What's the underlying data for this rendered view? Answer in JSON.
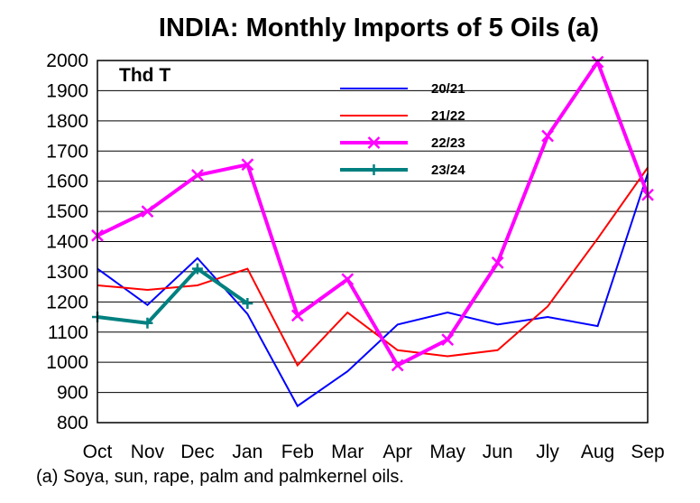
{
  "chart_data": {
    "type": "line",
    "title": "INDIA:  Monthly Imports of 5 Oils (a)",
    "unit_label": "Thd T",
    "footnote": "(a) Soya, sun, rape, palm and palmkernel oils.",
    "xlabel": "",
    "ylabel": "",
    "categories": [
      "Oct",
      "Nov",
      "Dec",
      "Jan",
      "Feb",
      "Mar",
      "Apr",
      "May",
      "Jun",
      "Jly",
      "Aug",
      "Sep"
    ],
    "ylim": [
      800,
      2000
    ],
    "yticks": [
      800,
      900,
      1000,
      1100,
      1200,
      1300,
      1400,
      1500,
      1600,
      1700,
      1800,
      1900,
      2000
    ],
    "grid": true,
    "legend_position": "top-center",
    "series": [
      {
        "name": "20/21",
        "color": "#0000ff",
        "marker": "none",
        "width": 2,
        "values": [
          1310,
          1190,
          1345,
          1160,
          855,
          970,
          1125,
          1165,
          1125,
          1150,
          1120,
          1625
        ]
      },
      {
        "name": "21/22",
        "color": "#ff0000",
        "marker": "none",
        "width": 2,
        "values": [
          1255,
          1240,
          1255,
          1310,
          990,
          1165,
          1040,
          1020,
          1040,
          1185,
          1410,
          1645
        ]
      },
      {
        "name": "22/23",
        "color": "#ff00ff",
        "marker": "x",
        "width": 4,
        "values": [
          1420,
          1500,
          1620,
          1655,
          1155,
          1275,
          990,
          1075,
          1330,
          1750,
          1995,
          1555
        ]
      },
      {
        "name": "23/24",
        "color": "#008080",
        "marker": "plus",
        "width": 4,
        "values": [
          1150,
          1130,
          1310,
          1195,
          null,
          null,
          null,
          null,
          null,
          null,
          null,
          null
        ]
      }
    ]
  }
}
